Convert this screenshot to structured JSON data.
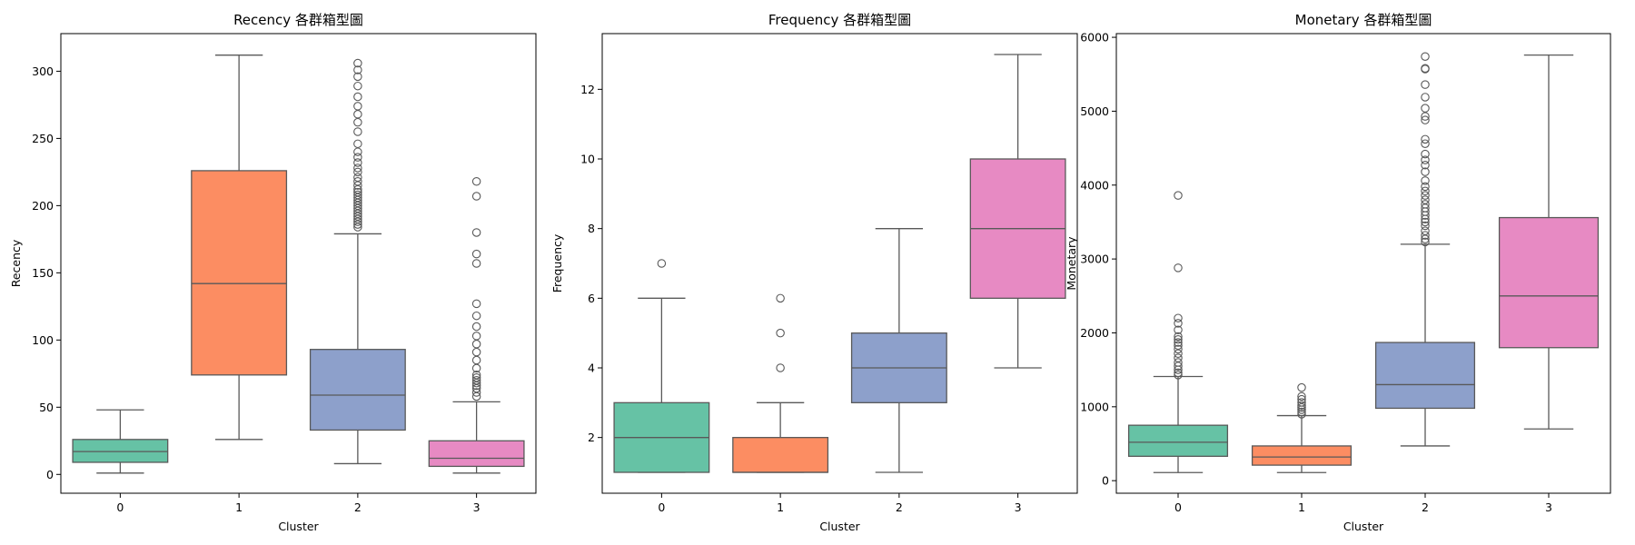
{
  "chart_data": [
    {
      "type": "box",
      "title": "Recency 各群箱型圖",
      "xlabel": "Cluster",
      "ylabel": "Recency",
      "categories": [
        "0",
        "1",
        "2",
        "3"
      ],
      "ylim": [
        -14,
        328
      ],
      "yticks": [
        0,
        50,
        100,
        150,
        200,
        250,
        300
      ],
      "colors": [
        "#66c2a5",
        "#fc8d62",
        "#8da0cb",
        "#e78ac3"
      ],
      "boxes": [
        {
          "category": "0",
          "whisker_low": 1,
          "q1": 9,
          "median": 17,
          "q3": 26,
          "whisker_high": 48,
          "outliers": []
        },
        {
          "category": "1",
          "whisker_low": 26,
          "q1": 74,
          "median": 142,
          "q3": 226,
          "whisker_high": 312,
          "outliers": []
        },
        {
          "category": "2",
          "whisker_low": 8,
          "q1": 33,
          "median": 59,
          "q3": 93,
          "whisker_high": 179,
          "outliers": [
            184,
            186,
            188,
            190,
            192,
            194,
            196,
            198,
            200,
            202,
            204,
            206,
            208,
            210,
            212,
            215,
            218,
            221,
            225,
            228,
            232,
            236,
            240,
            246,
            255,
            262,
            268,
            274,
            281,
            289,
            296,
            301,
            306
          ]
        },
        {
          "category": "3",
          "whisker_low": 1,
          "q1": 6,
          "median": 12,
          "q3": 25,
          "whisker_high": 54,
          "outliers": [
            58,
            61,
            64,
            66,
            68,
            70,
            72,
            74,
            79,
            85,
            91,
            97,
            103,
            110,
            118,
            127,
            157,
            164,
            180,
            207,
            218
          ]
        }
      ]
    },
    {
      "type": "box",
      "title": "Frequency 各群箱型圖",
      "xlabel": "Cluster",
      "ylabel": "Frequency",
      "categories": [
        "0",
        "1",
        "2",
        "3"
      ],
      "ylim": [
        0.4,
        13.6
      ],
      "yticks": [
        2,
        4,
        6,
        8,
        10,
        12
      ],
      "colors": [
        "#66c2a5",
        "#fc8d62",
        "#8da0cb",
        "#e78ac3"
      ],
      "boxes": [
        {
          "category": "0",
          "whisker_low": 1,
          "q1": 1,
          "median": 2,
          "q3": 3,
          "whisker_high": 6,
          "outliers": [
            7
          ]
        },
        {
          "category": "1",
          "whisker_low": 1,
          "q1": 1,
          "median": 1,
          "q3": 2,
          "whisker_high": 3,
          "outliers": [
            4,
            5,
            6
          ]
        },
        {
          "category": "2",
          "whisker_low": 1,
          "q1": 3,
          "median": 4,
          "q3": 5,
          "whisker_high": 8,
          "outliers": []
        },
        {
          "category": "3",
          "whisker_low": 4,
          "q1": 6,
          "median": 8,
          "q3": 10,
          "whisker_high": 13,
          "outliers": []
        }
      ]
    },
    {
      "type": "box",
      "title": "Monetary 各群箱型圖",
      "xlabel": "Cluster",
      "ylabel": "Monetary",
      "categories": [
        "0",
        "1",
        "2",
        "3"
      ],
      "ylim": [
        -170,
        6050
      ],
      "yticks": [
        0,
        1000,
        2000,
        3000,
        4000,
        5000,
        6000
      ],
      "colors": [
        "#66c2a5",
        "#fc8d62",
        "#8da0cb",
        "#e78ac3"
      ],
      "boxes": [
        {
          "category": "0",
          "whisker_low": 110,
          "q1": 330,
          "median": 520,
          "q3": 750,
          "whisker_high": 1410,
          "outliers": [
            1430,
            1460,
            1500,
            1550,
            1600,
            1660,
            1720,
            1780,
            1830,
            1870,
            1910,
            1950,
            2040,
            2130,
            2200,
            2880,
            3860
          ]
        },
        {
          "category": "1",
          "whisker_low": 110,
          "q1": 210,
          "median": 320,
          "q3": 470,
          "whisker_high": 880,
          "outliers": [
            900,
            930,
            960,
            990,
            1020,
            1060,
            1100,
            1140,
            1260
          ]
        },
        {
          "category": "2",
          "whisker_low": 470,
          "q1": 980,
          "median": 1300,
          "q3": 1870,
          "whisker_high": 3200,
          "outliers": [
            3230,
            3270,
            3320,
            3380,
            3450,
            3500,
            3540,
            3590,
            3640,
            3690,
            3740,
            3800,
            3860,
            3920,
            3980,
            4060,
            4180,
            4270,
            4340,
            4420,
            4560,
            4620,
            4880,
            4930,
            5040,
            5190,
            5360,
            5570,
            5580,
            5740
          ]
        },
        {
          "category": "3",
          "whisker_low": 700,
          "q1": 1800,
          "median": 2500,
          "q3": 3560,
          "whisker_high": 5760,
          "outliers": []
        }
      ]
    }
  ]
}
